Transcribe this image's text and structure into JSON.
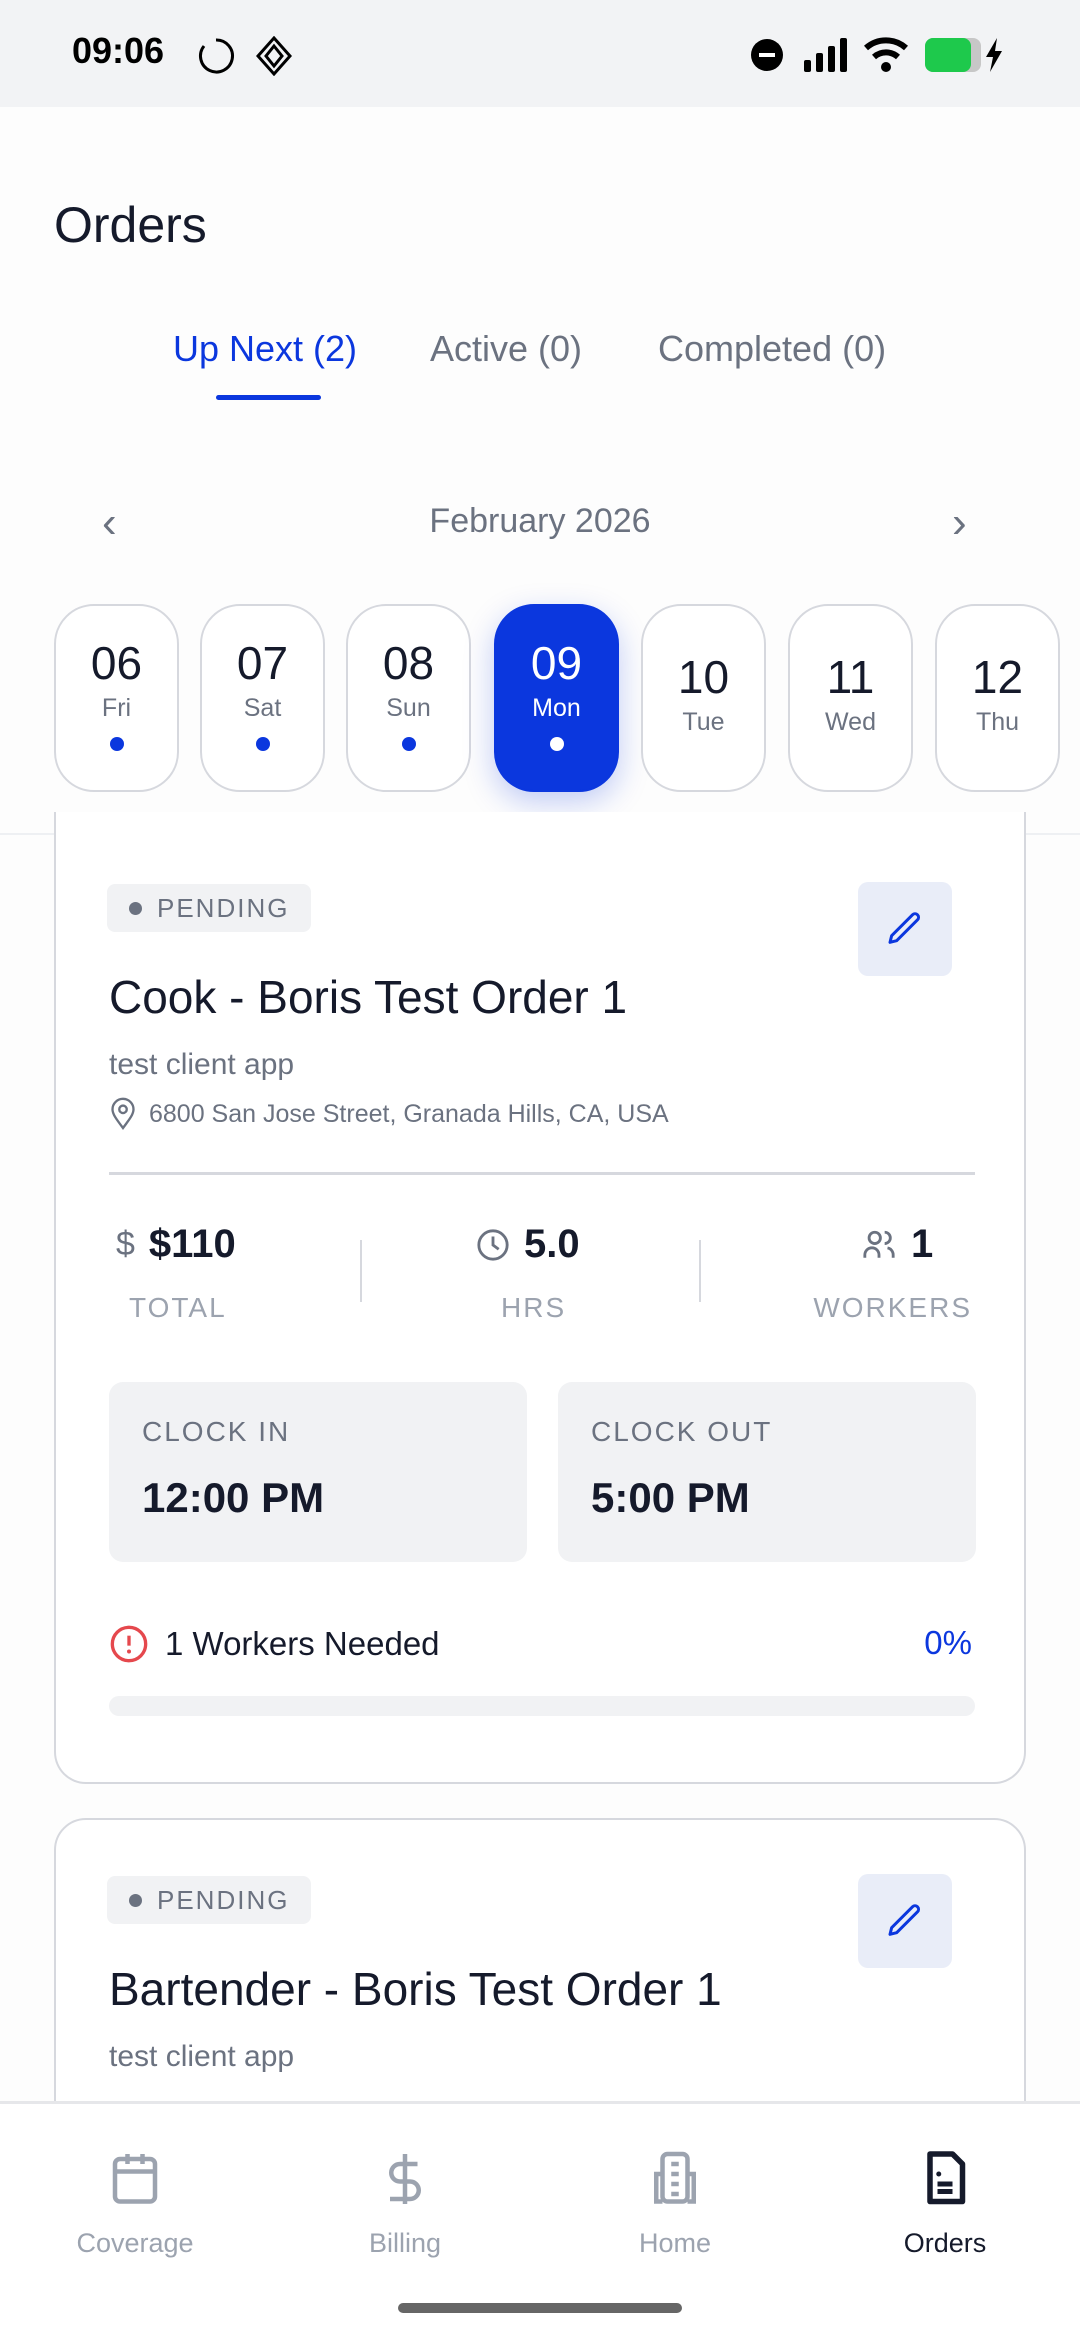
{
  "status_bar": {
    "time": "09:06"
  },
  "page": {
    "title": "Orders"
  },
  "tabs": [
    {
      "label": "Up Next (2)",
      "active": true
    },
    {
      "label": "Active (0)"
    },
    {
      "label": "Completed (0)"
    }
  ],
  "calendar": {
    "month": "February 2026",
    "days": [
      {
        "num": "06",
        "day": "Fri",
        "has_orders": true
      },
      {
        "num": "07",
        "day": "Sat",
        "has_orders": true
      },
      {
        "num": "08",
        "day": "Sun",
        "has_orders": true
      },
      {
        "num": "09",
        "day": "Mon",
        "has_orders": true,
        "selected": true
      },
      {
        "num": "10",
        "day": "Tue",
        "has_orders": false
      },
      {
        "num": "11",
        "day": "Wed",
        "has_orders": false
      },
      {
        "num": "12",
        "day": "Thu",
        "has_orders": false
      }
    ]
  },
  "orders": [
    {
      "status": "PENDING",
      "title": "Cook - Boris Test Order 1",
      "client": "test client app",
      "address": "6800 San Jose Street, Granada Hills, CA, USA",
      "total": "$110",
      "total_label": "TOTAL",
      "hours": "5.0",
      "hours_label": "HRS",
      "workers": "1",
      "workers_label": "WORKERS",
      "clock_in_label": "CLOCK IN",
      "clock_in": "12:00 PM",
      "clock_out_label": "CLOCK OUT",
      "clock_out": "5:00 PM",
      "needed": "1 Workers Needed",
      "fill_percent_label": "0%",
      "fill_percent": 0
    },
    {
      "status": "PENDING",
      "title": "Bartender - Boris Test Order 1",
      "client": "test client app"
    }
  ],
  "bottom_nav": [
    {
      "label": "Coverage",
      "icon": "calendar-icon"
    },
    {
      "label": "Billing",
      "icon": "dollar-icon"
    },
    {
      "label": "Home",
      "icon": "building-icon"
    },
    {
      "label": "Orders",
      "icon": "document-icon",
      "active": true
    }
  ],
  "colors": {
    "accent": "#0b37de",
    "alert": "#e5484d",
    "muted": "#6b7280"
  }
}
